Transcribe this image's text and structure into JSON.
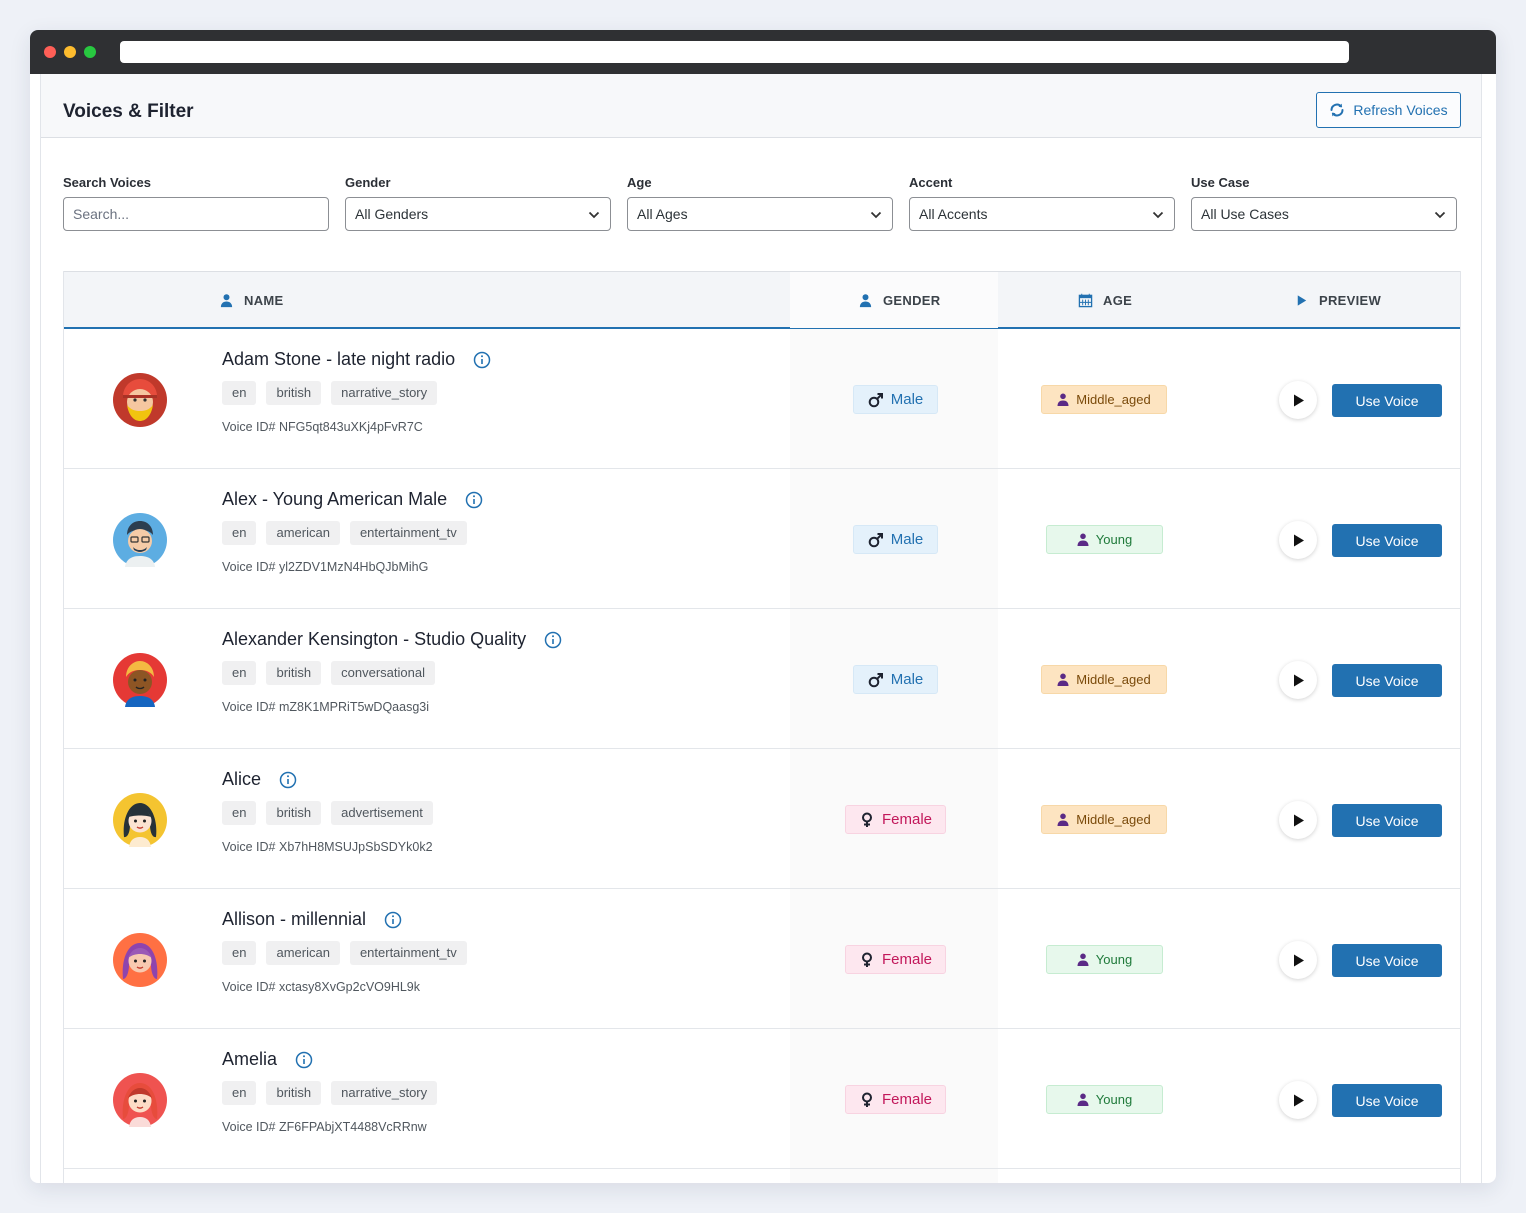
{
  "header": {
    "title": "Voices & Filter",
    "refresh_label": "Refresh Voices",
    "refresh_icon": "refresh-icon"
  },
  "filters": {
    "search": {
      "label": "Search Voices",
      "placeholder": "Search...",
      "value": ""
    },
    "gender": {
      "label": "Gender",
      "value": "All Genders"
    },
    "age": {
      "label": "Age",
      "value": "All Ages"
    },
    "accent": {
      "label": "Accent",
      "value": "All Accents"
    },
    "use_case": {
      "label": "Use Case",
      "value": "All Use Cases"
    }
  },
  "columns": {
    "name": "NAME",
    "gender": "GENDER",
    "age": "AGE",
    "preview": "PREVIEW"
  },
  "colors": {
    "accent": "#2271b1",
    "male_bg": "#e4f1fb",
    "female_bg": "#fde7ef",
    "middle_bg": "#fde4c1",
    "young_bg": "#e7f8ec"
  },
  "voices": [
    {
      "name": "Adam Stone - late night radio",
      "tags": [
        "en",
        "british",
        "narrative_story"
      ],
      "voice_id": "Voice ID# NFG5qt843uXKj4pFvR7C",
      "gender": "Male",
      "age": "Middle_aged",
      "use_label": "Use Voice"
    },
    {
      "name": "Alex - Young American Male",
      "tags": [
        "en",
        "american",
        "entertainment_tv"
      ],
      "voice_id": "Voice ID# yl2ZDV1MzN4HbQJbMihG",
      "gender": "Male",
      "age": "Young",
      "use_label": "Use Voice"
    },
    {
      "name": "Alexander Kensington - Studio Quality",
      "tags": [
        "en",
        "british",
        "conversational"
      ],
      "voice_id": "Voice ID# mZ8K1MPRiT5wDQaasg3i",
      "gender": "Male",
      "age": "Middle_aged",
      "use_label": "Use Voice"
    },
    {
      "name": "Alice",
      "tags": [
        "en",
        "british",
        "advertisement"
      ],
      "voice_id": "Voice ID# Xb7hH8MSUJpSbSDYk0k2",
      "gender": "Female",
      "age": "Middle_aged",
      "use_label": "Use Voice"
    },
    {
      "name": "Allison - millennial",
      "tags": [
        "en",
        "american",
        "entertainment_tv"
      ],
      "voice_id": "Voice ID# xctasy8XvGp2cVO9HL9k",
      "gender": "Female",
      "age": "Young",
      "use_label": "Use Voice"
    },
    {
      "name": "Amelia",
      "tags": [
        "en",
        "british",
        "narrative_story"
      ],
      "voice_id": "Voice ID# ZF6FPAbjXT4488VcRRnw",
      "gender": "Female",
      "age": "Young",
      "use_label": "Use Voice"
    }
  ]
}
